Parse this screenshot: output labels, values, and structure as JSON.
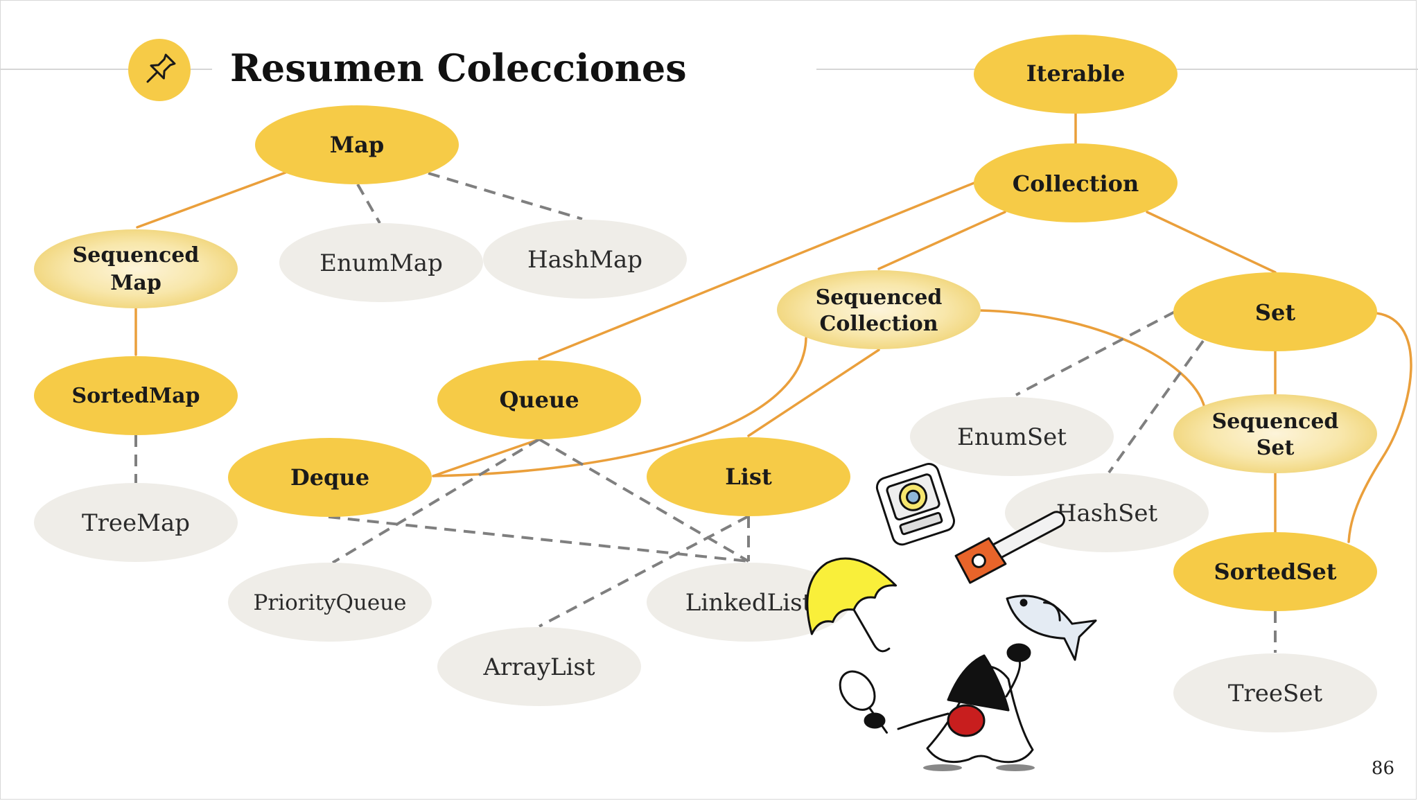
{
  "slide": {
    "title": "Resumen Colecciones",
    "page_number": "86"
  },
  "icons": {
    "title_badge": "pushpin-icon",
    "mascot": "java-duke-juggling-illustration"
  },
  "colors": {
    "core": "#f6cb47",
    "sequenced_edge": "#f3dc8f",
    "sequenced_center": "#fdf4da",
    "implementation": "#efede8",
    "inheritance_line": "#ea9f3b",
    "implementation_line": "#7f7f7f",
    "header_rule": "#d6d6d6"
  },
  "nodes": {
    "iterable": "Iterable",
    "collection": "Collection",
    "map": "Map",
    "sequenced_map": [
      "Sequenced",
      "Map"
    ],
    "sorted_map": "SortedMap",
    "tree_map": "TreeMap",
    "enum_map": "EnumMap",
    "hash_map": "HashMap",
    "sequenced_collection": [
      "Sequenced",
      "Collection"
    ],
    "set": "Set",
    "sequenced_set": [
      "Sequenced",
      "Set"
    ],
    "sorted_set": "SortedSet",
    "tree_set": "TreeSet",
    "enum_set": "EnumSet",
    "hash_set": "HashSet",
    "queue": "Queue",
    "deque": "Deque",
    "list": "List",
    "priority_queue": "PriorityQueue",
    "linked_list": "LinkedList",
    "array_list": "ArrayList"
  }
}
